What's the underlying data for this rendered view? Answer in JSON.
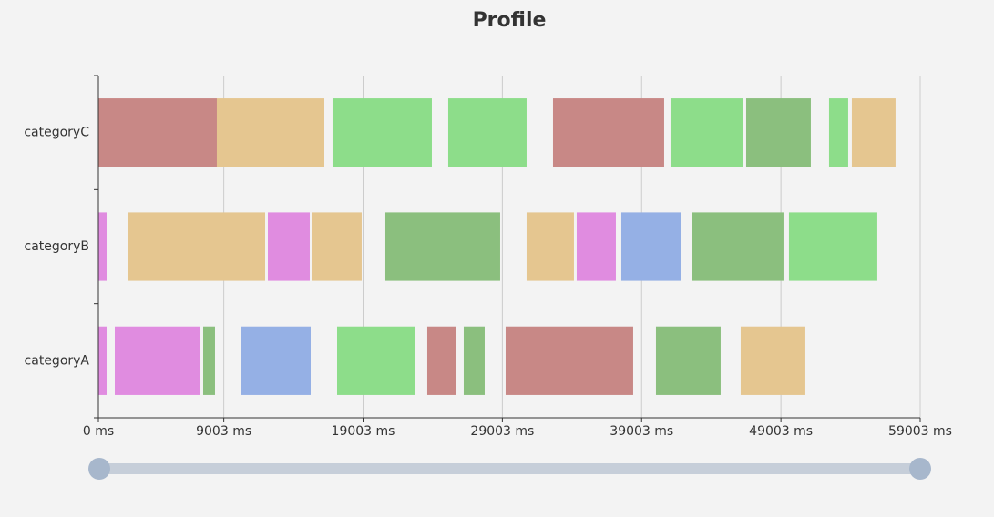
{
  "chart_data": {
    "type": "gantt",
    "title": "Profile",
    "categories": [
      "categoryA",
      "categoryB",
      "categoryC"
    ],
    "bars": [
      [
        {
          "start": 0,
          "end": 589,
          "color": "#e08ce0"
        },
        {
          "start": 1177,
          "end": 7261,
          "color": "#e08ce0"
        },
        {
          "start": 7522,
          "end": 8372,
          "color": "#8bbf7e"
        },
        {
          "start": 10269,
          "end": 15241,
          "color": "#95b0e5"
        },
        {
          "start": 17138,
          "end": 22698,
          "color": "#8ddd8a"
        },
        {
          "start": 23613,
          "end": 25706,
          "color": "#c88886"
        },
        {
          "start": 26229,
          "end": 27734,
          "color": "#8bbf7e"
        },
        {
          "start": 29238,
          "end": 38396,
          "color": "#c88886"
        },
        {
          "start": 40031,
          "end": 44675,
          "color": "#8bbf7e"
        },
        {
          "start": 46114,
          "end": 50758,
          "color": "#e5c690"
        }
      ],
      [
        {
          "start": 0,
          "end": 589,
          "color": "#e08ce0"
        },
        {
          "start": 2093,
          "end": 11970,
          "color": "#e5c690"
        },
        {
          "start": 12166,
          "end": 15175,
          "color": "#e08ce0"
        },
        {
          "start": 15306,
          "end": 18903,
          "color": "#e5c690"
        },
        {
          "start": 20604,
          "end": 28846,
          "color": "#8bbf7e"
        },
        {
          "start": 30743,
          "end": 34144,
          "color": "#e5c690"
        },
        {
          "start": 34340,
          "end": 37153,
          "color": "#e08ce0"
        },
        {
          "start": 37545,
          "end": 41862,
          "color": "#95b0e5"
        },
        {
          "start": 42647,
          "end": 49188,
          "color": "#8bbf7e"
        },
        {
          "start": 49580,
          "end": 55925,
          "color": "#8ddd8a"
        }
      ],
      [
        {
          "start": 0,
          "end": 8503,
          "color": "#c88886"
        },
        {
          "start": 8503,
          "end": 16222,
          "color": "#e5c690"
        },
        {
          "start": 16810,
          "end": 23940,
          "color": "#8ddd8a"
        },
        {
          "start": 25117,
          "end": 30743,
          "color": "#8ddd8a"
        },
        {
          "start": 32640,
          "end": 40620,
          "color": "#c88886"
        },
        {
          "start": 41078,
          "end": 46310,
          "color": "#8ddd8a"
        },
        {
          "start": 46507,
          "end": 51151,
          "color": "#8bbf7e"
        },
        {
          "start": 52459,
          "end": 53833,
          "color": "#8ddd8a"
        },
        {
          "start": 54094,
          "end": 57233,
          "color": "#e5c690"
        }
      ]
    ],
    "xlim": [
      0,
      59003
    ],
    "xticks": [
      {
        "value": 0,
        "label": "0 ms"
      },
      {
        "value": 9003,
        "label": "9003 ms"
      },
      {
        "value": 19003,
        "label": "19003 ms"
      },
      {
        "value": 29003,
        "label": "29003 ms"
      },
      {
        "value": 39003,
        "label": "39003 ms"
      },
      {
        "value": 49003,
        "label": "49003 ms"
      },
      {
        "value": 59003,
        "label": "59003 ms"
      }
    ],
    "grid": true
  }
}
